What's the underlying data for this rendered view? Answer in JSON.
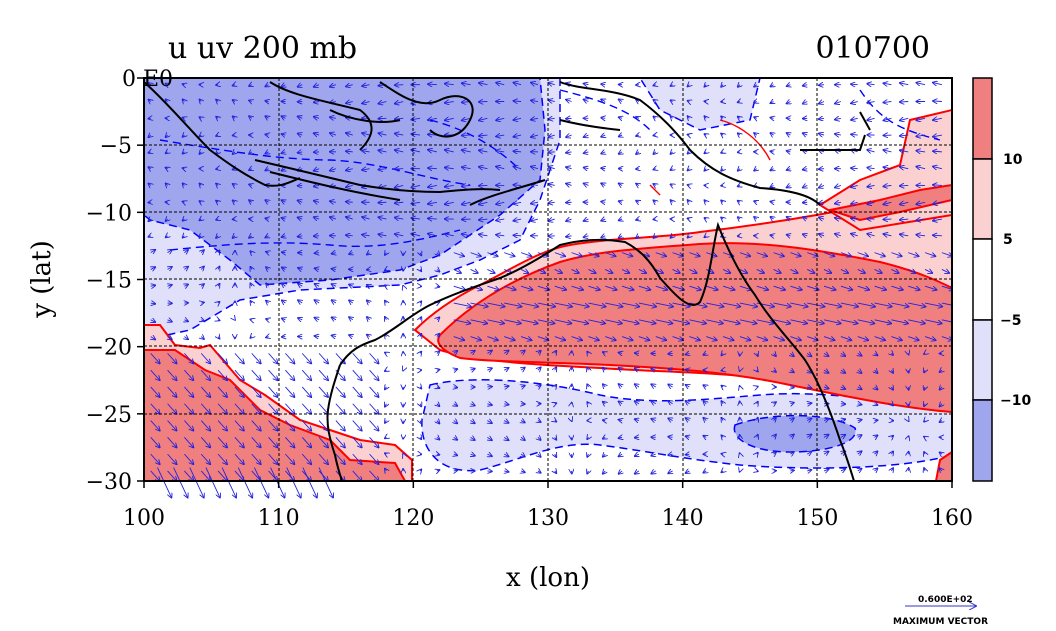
{
  "title_left": "u uv 200 mb",
  "title_right": "010700",
  "xlabel": "x (lon)",
  "ylabel": "y (lat)",
  "x_ticks": [
    "100",
    "110",
    "120",
    "130",
    "140",
    "150",
    "160"
  ],
  "y_ticks": [
    "0",
    "−5",
    "−10",
    "−15",
    "−20",
    "−25",
    "−30"
  ],
  "corner_label": "0 E0",
  "colorbar": {
    "labels": [
      "10",
      "5",
      "−5",
      "−10"
    ],
    "colors": [
      "#f08080",
      "#fbd0d0",
      "#ffffff",
      "#e0e0fa",
      "#9fa6ee"
    ]
  },
  "vector_key": {
    "value": "0.600E+02",
    "label": "MAXIMUM VECTOR"
  },
  "colors": {
    "pos_strong": "#f08080",
    "pos_weak": "#fbd0d0",
    "neg_weak": "#e0e0fa",
    "neg_strong": "#9fa6ee",
    "pos_line": "#ff0000",
    "neg_line": "#0000ff",
    "coast": "#000000"
  },
  "chart_data": {
    "type": "heatmap",
    "field": "u wind component with uv vectors, 200 mb",
    "xlim": [
      100,
      160
    ],
    "ylim": [
      -30,
      0
    ],
    "x_ticks": [
      100,
      110,
      120,
      130,
      140,
      150,
      160
    ],
    "y_ticks": [
      0,
      -5,
      -10,
      -15,
      -20,
      -25,
      -30
    ],
    "contour_levels": [
      -10,
      -5,
      5,
      10
    ],
    "grid": true,
    "legend": "right colorbar"
  }
}
